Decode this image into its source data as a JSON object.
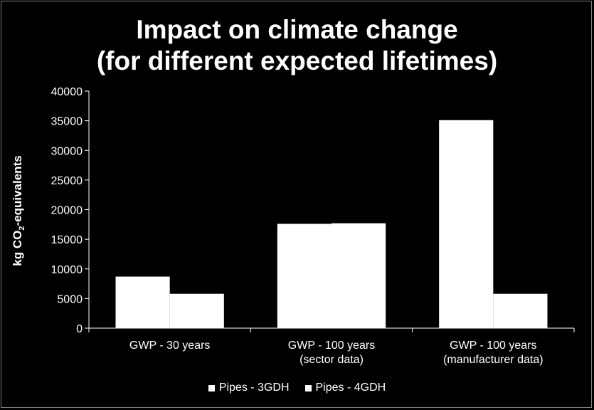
{
  "chart_data": {
    "type": "bar",
    "title_lines": [
      "Impact on climate change",
      "(for different expected lifetimes)"
    ],
    "ylabel_prefix": "kg CO",
    "ylabel_sub": "2",
    "ylabel_suffix": "-equivalents",
    "xlabel": "",
    "ylim": [
      0,
      40000
    ],
    "yticks": [
      0,
      5000,
      10000,
      15000,
      20000,
      25000,
      30000,
      35000,
      40000
    ],
    "categories": [
      [
        "GWP - 30 years"
      ],
      [
        "GWP - 100 years",
        "(sector data)"
      ],
      [
        "GWP - 100 years",
        "(manufacturer data)"
      ]
    ],
    "series": [
      {
        "name": "Pipes - 3GDH",
        "color": "#ffffff",
        "values": [
          8700,
          17600,
          35100
        ]
      },
      {
        "name": "Pipes - 4GDH",
        "color": "#ffffff",
        "values": [
          5800,
          17700,
          5800
        ]
      }
    ],
    "grid": false,
    "legend_position": "bottom"
  }
}
